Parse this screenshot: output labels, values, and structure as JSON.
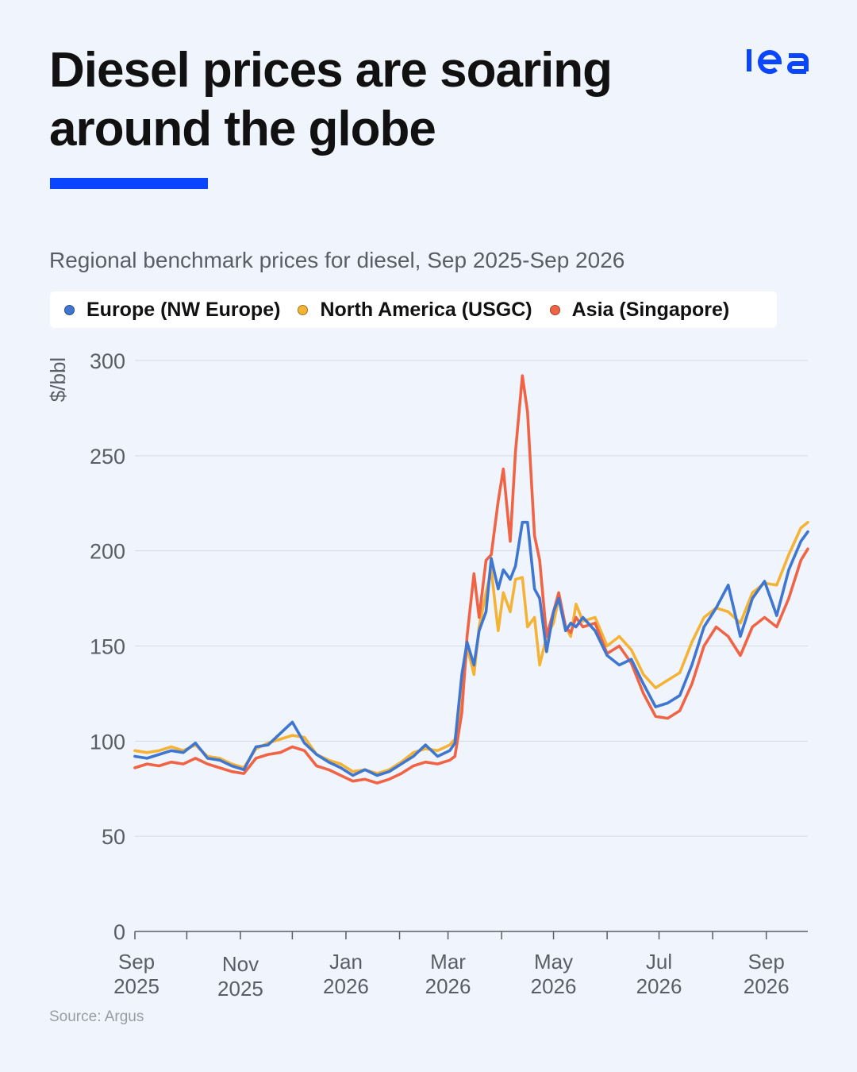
{
  "header": {
    "title": "Diesel prices are soaring around the globe",
    "subtitle": "Regional benchmark prices for diesel, Sep 2025-Sep 2026",
    "logo_text": "iea"
  },
  "colors": {
    "background": "#f0f5fd",
    "accent": "#0a46ff",
    "europe": "#3f76d1",
    "north_america": "#f5b335",
    "asia": "#f06445",
    "gridline": "#d4d9e2",
    "axis_text": "#5b5d66"
  },
  "legend": {
    "items": [
      {
        "label": "Europe (NW Europe)",
        "color": "#3f76d1"
      },
      {
        "label": "North America (USGC)",
        "color": "#f5b335"
      },
      {
        "label": "Asia (Singapore)",
        "color": "#f06445"
      }
    ]
  },
  "chart_data": {
    "type": "line",
    "title": "",
    "xlabel": "",
    "ylabel": "$/bbl",
    "ylim": [
      0,
      300
    ],
    "yticks": [
      "0",
      "50",
      "100",
      "150",
      "200",
      "250",
      "300"
    ],
    "xlim": [
      "2025-09-01",
      "2026-09-25"
    ],
    "xticks": [
      {
        "date": "2025-09-01",
        "line1": "Sep",
        "line2": "2025"
      },
      {
        "date": "2025-11-01",
        "line1": "Nov",
        "line2": "2025"
      },
      {
        "date": "2026-01-01",
        "line1": "Jan",
        "line2": "2026"
      },
      {
        "date": "2026-03-01",
        "line1": "Mar",
        "line2": "2026"
      },
      {
        "date": "2026-05-01",
        "line1": "May",
        "line2": "2026"
      },
      {
        "date": "2026-07-01",
        "line1": "Jul",
        "line2": "2026"
      },
      {
        "date": "2026-09-01",
        "line1": "Sep",
        "line2": "2026"
      }
    ],
    "minor_ticks": [
      "2025-10-01",
      "2025-12-01",
      "2026-02-01",
      "2026-04-01",
      "2026-06-01",
      "2026-08-01"
    ],
    "grid": true,
    "legend_position": "top",
    "series": [
      {
        "name": "North America (USGC)",
        "color": "#f5b335",
        "points": [
          [
            "2025-09-01",
            95
          ],
          [
            "2025-09-08",
            94
          ],
          [
            "2025-09-15",
            95
          ],
          [
            "2025-09-22",
            97
          ],
          [
            "2025-09-29",
            95
          ],
          [
            "2025-10-06",
            98
          ],
          [
            "2025-10-13",
            92
          ],
          [
            "2025-10-20",
            91
          ],
          [
            "2025-10-27",
            88
          ],
          [
            "2025-11-03",
            86
          ],
          [
            "2025-11-10",
            96
          ],
          [
            "2025-11-17",
            99
          ],
          [
            "2025-11-24",
            101
          ],
          [
            "2025-12-01",
            103
          ],
          [
            "2025-12-08",
            102
          ],
          [
            "2025-12-15",
            93
          ],
          [
            "2025-12-22",
            90
          ],
          [
            "2025-12-29",
            88
          ],
          [
            "2026-01-05",
            84
          ],
          [
            "2026-01-12",
            85
          ],
          [
            "2026-01-19",
            83
          ],
          [
            "2026-01-26",
            85
          ],
          [
            "2026-02-02",
            89
          ],
          [
            "2026-02-09",
            94
          ],
          [
            "2026-02-16",
            96
          ],
          [
            "2026-02-23",
            95
          ],
          [
            "2026-03-02",
            98
          ],
          [
            "2026-03-05",
            101
          ],
          [
            "2026-03-09",
            120
          ],
          [
            "2026-03-12",
            150
          ],
          [
            "2026-03-16",
            135
          ],
          [
            "2026-03-19",
            160
          ],
          [
            "2026-03-23",
            178
          ],
          [
            "2026-03-26",
            190
          ],
          [
            "2026-03-30",
            158
          ],
          [
            "2026-04-02",
            178
          ],
          [
            "2026-04-06",
            168
          ],
          [
            "2026-04-09",
            185
          ],
          [
            "2026-04-13",
            186
          ],
          [
            "2026-04-16",
            160
          ],
          [
            "2026-04-20",
            165
          ],
          [
            "2026-04-23",
            140
          ],
          [
            "2026-04-27",
            155
          ],
          [
            "2026-05-01",
            162
          ],
          [
            "2026-05-04",
            175
          ],
          [
            "2026-05-08",
            160
          ],
          [
            "2026-05-11",
            155
          ],
          [
            "2026-05-14",
            172
          ],
          [
            "2026-05-18",
            163
          ],
          [
            "2026-05-25",
            165
          ],
          [
            "2026-06-01",
            150
          ],
          [
            "2026-06-08",
            155
          ],
          [
            "2026-06-15",
            148
          ],
          [
            "2026-06-22",
            135
          ],
          [
            "2026-06-29",
            128
          ],
          [
            "2026-07-06",
            132
          ],
          [
            "2026-07-13",
            136
          ],
          [
            "2026-07-20",
            152
          ],
          [
            "2026-07-27",
            165
          ],
          [
            "2026-08-03",
            170
          ],
          [
            "2026-08-10",
            168
          ],
          [
            "2026-08-17",
            162
          ],
          [
            "2026-08-24",
            178
          ],
          [
            "2026-08-31",
            183
          ],
          [
            "2026-09-07",
            182
          ],
          [
            "2026-09-14",
            198
          ],
          [
            "2026-09-21",
            212
          ],
          [
            "2026-09-25",
            215
          ]
        ]
      },
      {
        "name": "Asia (Singapore)",
        "color": "#f06445",
        "points": [
          [
            "2025-09-01",
            86
          ],
          [
            "2025-09-08",
            88
          ],
          [
            "2025-09-15",
            87
          ],
          [
            "2025-09-22",
            89
          ],
          [
            "2025-09-29",
            88
          ],
          [
            "2025-10-06",
            91
          ],
          [
            "2025-10-13",
            88
          ],
          [
            "2025-10-20",
            86
          ],
          [
            "2025-10-27",
            84
          ],
          [
            "2025-11-03",
            83
          ],
          [
            "2025-11-10",
            91
          ],
          [
            "2025-11-17",
            93
          ],
          [
            "2025-11-24",
            94
          ],
          [
            "2025-12-01",
            97
          ],
          [
            "2025-12-08",
            95
          ],
          [
            "2025-12-15",
            87
          ],
          [
            "2025-12-22",
            85
          ],
          [
            "2025-12-29",
            82
          ],
          [
            "2026-01-05",
            79
          ],
          [
            "2026-01-12",
            80
          ],
          [
            "2026-01-19",
            78
          ],
          [
            "2026-01-26",
            80
          ],
          [
            "2026-02-02",
            83
          ],
          [
            "2026-02-09",
            87
          ],
          [
            "2026-02-16",
            89
          ],
          [
            "2026-02-23",
            88
          ],
          [
            "2026-03-02",
            90
          ],
          [
            "2026-03-05",
            92
          ],
          [
            "2026-03-09",
            115
          ],
          [
            "2026-03-12",
            155
          ],
          [
            "2026-03-16",
            188
          ],
          [
            "2026-03-19",
            165
          ],
          [
            "2026-03-23",
            195
          ],
          [
            "2026-03-26",
            198
          ],
          [
            "2026-03-30",
            226
          ],
          [
            "2026-04-02",
            243
          ],
          [
            "2026-04-06",
            205
          ],
          [
            "2026-04-09",
            252
          ],
          [
            "2026-04-13",
            292
          ],
          [
            "2026-04-16",
            273
          ],
          [
            "2026-04-20",
            208
          ],
          [
            "2026-04-23",
            195
          ],
          [
            "2026-04-27",
            155
          ],
          [
            "2026-05-01",
            168
          ],
          [
            "2026-05-04",
            178
          ],
          [
            "2026-05-08",
            160
          ],
          [
            "2026-05-11",
            157
          ],
          [
            "2026-05-14",
            165
          ],
          [
            "2026-05-18",
            160
          ],
          [
            "2026-05-25",
            162
          ],
          [
            "2026-06-01",
            146
          ],
          [
            "2026-06-08",
            150
          ],
          [
            "2026-06-15",
            141
          ],
          [
            "2026-06-22",
            125
          ],
          [
            "2026-06-29",
            113
          ],
          [
            "2026-07-06",
            112
          ],
          [
            "2026-07-13",
            116
          ],
          [
            "2026-07-20",
            130
          ],
          [
            "2026-07-27",
            150
          ],
          [
            "2026-08-03",
            160
          ],
          [
            "2026-08-10",
            155
          ],
          [
            "2026-08-17",
            145
          ],
          [
            "2026-08-24",
            160
          ],
          [
            "2026-08-31",
            165
          ],
          [
            "2026-09-07",
            160
          ],
          [
            "2026-09-14",
            175
          ],
          [
            "2026-09-21",
            195
          ],
          [
            "2026-09-25",
            201
          ]
        ]
      },
      {
        "name": "Europe (NW Europe)",
        "color": "#3f76d1",
        "points": [
          [
            "2025-09-01",
            92
          ],
          [
            "2025-09-08",
            91
          ],
          [
            "2025-09-15",
            93
          ],
          [
            "2025-09-22",
            95
          ],
          [
            "2025-09-29",
            94
          ],
          [
            "2025-10-06",
            99
          ],
          [
            "2025-10-13",
            91
          ],
          [
            "2025-10-20",
            90
          ],
          [
            "2025-10-27",
            87
          ],
          [
            "2025-11-03",
            85
          ],
          [
            "2025-11-10",
            97
          ],
          [
            "2025-11-17",
            98
          ],
          [
            "2025-11-24",
            104
          ],
          [
            "2025-12-01",
            110
          ],
          [
            "2025-12-08",
            99
          ],
          [
            "2025-12-15",
            93
          ],
          [
            "2025-12-22",
            89
          ],
          [
            "2025-12-29",
            86
          ],
          [
            "2026-01-05",
            82
          ],
          [
            "2026-01-12",
            85
          ],
          [
            "2026-01-19",
            82
          ],
          [
            "2026-01-26",
            84
          ],
          [
            "2026-02-02",
            88
          ],
          [
            "2026-02-09",
            92
          ],
          [
            "2026-02-16",
            98
          ],
          [
            "2026-02-23",
            92
          ],
          [
            "2026-03-02",
            95
          ],
          [
            "2026-03-05",
            99
          ],
          [
            "2026-03-09",
            135
          ],
          [
            "2026-03-12",
            152
          ],
          [
            "2026-03-16",
            140
          ],
          [
            "2026-03-19",
            158
          ],
          [
            "2026-03-23",
            168
          ],
          [
            "2026-03-26",
            196
          ],
          [
            "2026-03-30",
            180
          ],
          [
            "2026-04-02",
            190
          ],
          [
            "2026-04-06",
            185
          ],
          [
            "2026-04-09",
            192
          ],
          [
            "2026-04-13",
            215
          ],
          [
            "2026-04-16",
            215
          ],
          [
            "2026-04-20",
            180
          ],
          [
            "2026-04-23",
            175
          ],
          [
            "2026-04-27",
            147
          ],
          [
            "2026-05-01",
            168
          ],
          [
            "2026-05-04",
            175
          ],
          [
            "2026-05-08",
            158
          ],
          [
            "2026-05-11",
            162
          ],
          [
            "2026-05-14",
            160
          ],
          [
            "2026-05-18",
            165
          ],
          [
            "2026-05-25",
            158
          ],
          [
            "2026-06-01",
            145
          ],
          [
            "2026-06-08",
            140
          ],
          [
            "2026-06-15",
            143
          ],
          [
            "2026-06-22",
            130
          ],
          [
            "2026-06-29",
            118
          ],
          [
            "2026-07-06",
            120
          ],
          [
            "2026-07-13",
            124
          ],
          [
            "2026-07-20",
            140
          ],
          [
            "2026-07-27",
            160
          ],
          [
            "2026-08-03",
            170
          ],
          [
            "2026-08-10",
            182
          ],
          [
            "2026-08-17",
            155
          ],
          [
            "2026-08-24",
            175
          ],
          [
            "2026-08-31",
            184
          ],
          [
            "2026-09-07",
            166
          ],
          [
            "2026-09-14",
            190
          ],
          [
            "2026-09-21",
            205
          ],
          [
            "2026-09-25",
            210
          ]
        ]
      }
    ]
  },
  "footer": {
    "source": "Source: Argus"
  }
}
